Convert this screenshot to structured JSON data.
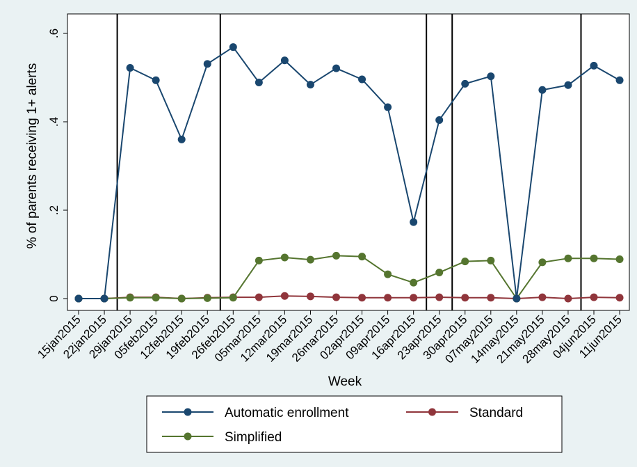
{
  "chart_data": {
    "type": "line",
    "title": "",
    "xlabel": "Week",
    "ylabel": "% of parents receiving 1+ alerts",
    "ylim": [
      0,
      0.6
    ],
    "y_ticks": [
      0,
      0.2,
      0.4,
      0.6
    ],
    "y_tick_labels": [
      "0",
      ".2",
      ".4",
      ".6"
    ],
    "grid": false,
    "legend_position": "bottom",
    "categories": [
      "15jan2015",
      "22jan2015",
      "29jan2015",
      "05feb2015",
      "12feb2015",
      "19feb2015",
      "26feb2015",
      "05mar2015",
      "12mar2015",
      "19mar2015",
      "26mar2015",
      "02apr2015",
      "09apr2015",
      "16apr2015",
      "23apr2015",
      "30apr2015",
      "07may2015",
      "14may2015",
      "21may2015",
      "28may2015",
      "04jun2015",
      "11jun2015"
    ],
    "vertical_lines_at": [
      1.5,
      5.5,
      13.5,
      14.5,
      19.5
    ],
    "series": [
      {
        "name": "Automatic enrollment",
        "color": "#1a476f",
        "values": [
          0.0,
          0.0,
          0.522,
          0.494,
          0.36,
          0.531,
          0.569,
          0.489,
          0.539,
          0.484,
          0.521,
          0.496,
          0.433,
          0.173,
          0.404,
          0.486,
          0.503,
          0.0,
          0.472,
          0.483,
          0.527,
          0.494
        ]
      },
      {
        "name": "Standard",
        "color": "#90353b",
        "values": [
          0.0,
          0.0,
          0.003,
          0.003,
          0.0,
          0.002,
          0.003,
          0.003,
          0.006,
          0.005,
          0.003,
          0.002,
          0.002,
          0.002,
          0.003,
          0.002,
          0.002,
          0.0,
          0.003,
          0.0,
          0.003,
          0.002
        ]
      },
      {
        "name": "Simplified",
        "color": "#55752f",
        "values": [
          0.0,
          0.0,
          0.002,
          0.002,
          0.0,
          0.001,
          0.002,
          0.086,
          0.093,
          0.088,
          0.097,
          0.095,
          0.055,
          0.036,
          0.059,
          0.084,
          0.086,
          0.0,
          0.082,
          0.091,
          0.091,
          0.089
        ]
      }
    ]
  }
}
